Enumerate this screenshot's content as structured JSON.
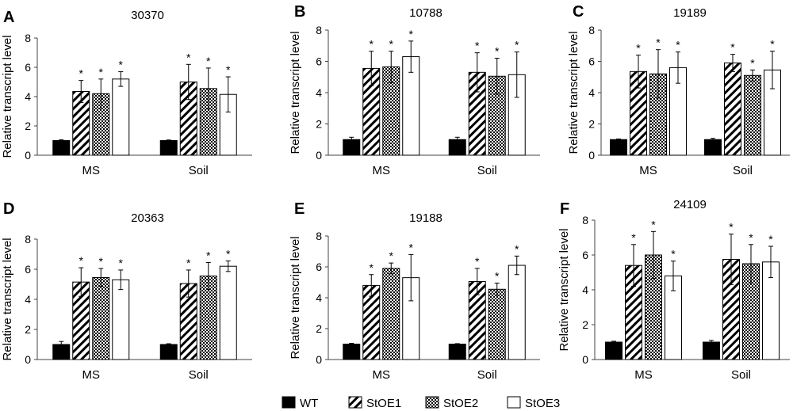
{
  "legend": [
    {
      "key": "WT",
      "label": "WT"
    },
    {
      "key": "StOE1",
      "label": "StOE1"
    },
    {
      "key": "StOE2",
      "label": "StOE2"
    },
    {
      "key": "StOE3",
      "label": "StOE3"
    }
  ],
  "chart_data": [
    {
      "type": "bar",
      "panel_label": "A",
      "title": "30370",
      "ylabel": "Relative transcript level",
      "xlabel": "",
      "ylim": [
        0,
        8
      ],
      "yticks": [
        0,
        2,
        4,
        6,
        8
      ],
      "categories": [
        "MS",
        "Soil"
      ],
      "series": [
        {
          "name": "WT",
          "values": [
            1.0,
            1.0
          ],
          "errors": [
            0.05,
            0.04
          ],
          "significant": [
            false,
            false
          ]
        },
        {
          "name": "StOE1",
          "values": [
            4.35,
            5.0
          ],
          "errors": [
            0.75,
            1.2
          ],
          "significant": [
            true,
            true
          ]
        },
        {
          "name": "StOE2",
          "values": [
            4.2,
            4.55
          ],
          "errors": [
            1.0,
            1.4
          ],
          "significant": [
            true,
            true
          ]
        },
        {
          "name": "StOE3",
          "values": [
            5.2,
            4.15
          ],
          "errors": [
            0.5,
            1.2
          ],
          "significant": [
            true,
            true
          ]
        }
      ]
    },
    {
      "type": "bar",
      "panel_label": "B",
      "title": "10788",
      "ylabel": "Relative transcript level",
      "xlabel": "",
      "ylim": [
        0,
        8
      ],
      "yticks": [
        0,
        2,
        4,
        6,
        8
      ],
      "categories": [
        "MS",
        "Soil"
      ],
      "series": [
        {
          "name": "WT",
          "values": [
            1.0,
            1.0
          ],
          "errors": [
            0.15,
            0.15
          ],
          "significant": [
            false,
            false
          ]
        },
        {
          "name": "StOE1",
          "values": [
            5.55,
            5.3
          ],
          "errors": [
            1.1,
            1.25
          ],
          "significant": [
            true,
            true
          ]
        },
        {
          "name": "StOE2",
          "values": [
            5.65,
            5.05
          ],
          "errors": [
            1.0,
            1.15
          ],
          "significant": [
            true,
            true
          ]
        },
        {
          "name": "StOE3",
          "values": [
            6.3,
            5.15
          ],
          "errors": [
            1.0,
            1.45
          ],
          "significant": [
            true,
            true
          ]
        }
      ]
    },
    {
      "type": "bar",
      "panel_label": "C",
      "title": "19189",
      "ylabel": "Relative transcript level",
      "xlabel": "",
      "ylim": [
        0,
        8
      ],
      "yticks": [
        0,
        2,
        4,
        6,
        8
      ],
      "categories": [
        "MS",
        "Soil"
      ],
      "series": [
        {
          "name": "WT",
          "values": [
            1.0,
            1.0
          ],
          "errors": [
            0.04,
            0.08
          ],
          "significant": [
            false,
            false
          ]
        },
        {
          "name": "StOE1",
          "values": [
            5.35,
            5.9
          ],
          "errors": [
            1.05,
            0.55
          ],
          "significant": [
            true,
            true
          ]
        },
        {
          "name": "StOE2",
          "values": [
            5.2,
            5.1
          ],
          "errors": [
            1.55,
            0.35
          ],
          "significant": [
            true,
            true
          ]
        },
        {
          "name": "StOE3",
          "values": [
            5.6,
            5.45
          ],
          "errors": [
            1.0,
            1.2
          ],
          "significant": [
            true,
            true
          ]
        }
      ]
    },
    {
      "type": "bar",
      "panel_label": "D",
      "title": "20363",
      "ylabel": "Relative transcript level",
      "xlabel": "",
      "ylim": [
        0,
        8
      ],
      "yticks": [
        0,
        2,
        4,
        6,
        8
      ],
      "categories": [
        "MS",
        "Soil"
      ],
      "series": [
        {
          "name": "WT",
          "values": [
            1.0,
            1.0
          ],
          "errors": [
            0.2,
            0.05
          ],
          "significant": [
            false,
            false
          ]
        },
        {
          "name": "StOE1",
          "values": [
            5.15,
            5.05
          ],
          "errors": [
            0.95,
            0.9
          ],
          "significant": [
            true,
            true
          ]
        },
        {
          "name": "StOE2",
          "values": [
            5.45,
            5.55
          ],
          "errors": [
            0.6,
            0.9
          ],
          "significant": [
            true,
            true
          ]
        },
        {
          "name": "StOE3",
          "values": [
            5.3,
            6.2
          ],
          "errors": [
            0.65,
            0.35
          ],
          "significant": [
            true,
            true
          ]
        }
      ]
    },
    {
      "type": "bar",
      "panel_label": "E",
      "title": "19188",
      "ylabel": "Relative transcript level",
      "xlabel": "",
      "ylim": [
        0,
        8
      ],
      "yticks": [
        0,
        2,
        4,
        6,
        8
      ],
      "categories": [
        "MS",
        "Soil"
      ],
      "series": [
        {
          "name": "WT",
          "values": [
            1.0,
            1.0
          ],
          "errors": [
            0.05,
            0.03
          ],
          "significant": [
            false,
            false
          ]
        },
        {
          "name": "StOE1",
          "values": [
            4.8,
            5.05
          ],
          "errors": [
            0.7,
            0.85
          ],
          "significant": [
            true,
            true
          ]
        },
        {
          "name": "StOE2",
          "values": [
            5.9,
            4.55
          ],
          "errors": [
            0.35,
            0.4
          ],
          "significant": [
            true,
            true
          ]
        },
        {
          "name": "StOE3",
          "values": [
            5.3,
            6.1
          ],
          "errors": [
            1.5,
            0.6
          ],
          "significant": [
            true,
            true
          ]
        }
      ]
    },
    {
      "type": "bar",
      "panel_label": "F",
      "title": "24109",
      "ylabel": "Relative transcript level",
      "xlabel": "",
      "ylim": [
        0,
        8
      ],
      "yticks": [
        0,
        2,
        4,
        6,
        8
      ],
      "categories": [
        "MS",
        "Soil"
      ],
      "series": [
        {
          "name": "WT",
          "values": [
            1.0,
            1.0
          ],
          "errors": [
            0.05,
            0.1
          ],
          "significant": [
            false,
            false
          ]
        },
        {
          "name": "StOE1",
          "values": [
            5.4,
            5.75
          ],
          "errors": [
            1.2,
            1.45
          ],
          "significant": [
            true,
            true
          ]
        },
        {
          "name": "StOE2",
          "values": [
            6.0,
            5.5
          ],
          "errors": [
            1.35,
            1.1
          ],
          "significant": [
            true,
            true
          ]
        },
        {
          "name": "StOE3",
          "values": [
            4.8,
            5.6
          ],
          "errors": [
            0.85,
            0.9
          ],
          "significant": [
            true,
            true
          ]
        }
      ]
    }
  ]
}
